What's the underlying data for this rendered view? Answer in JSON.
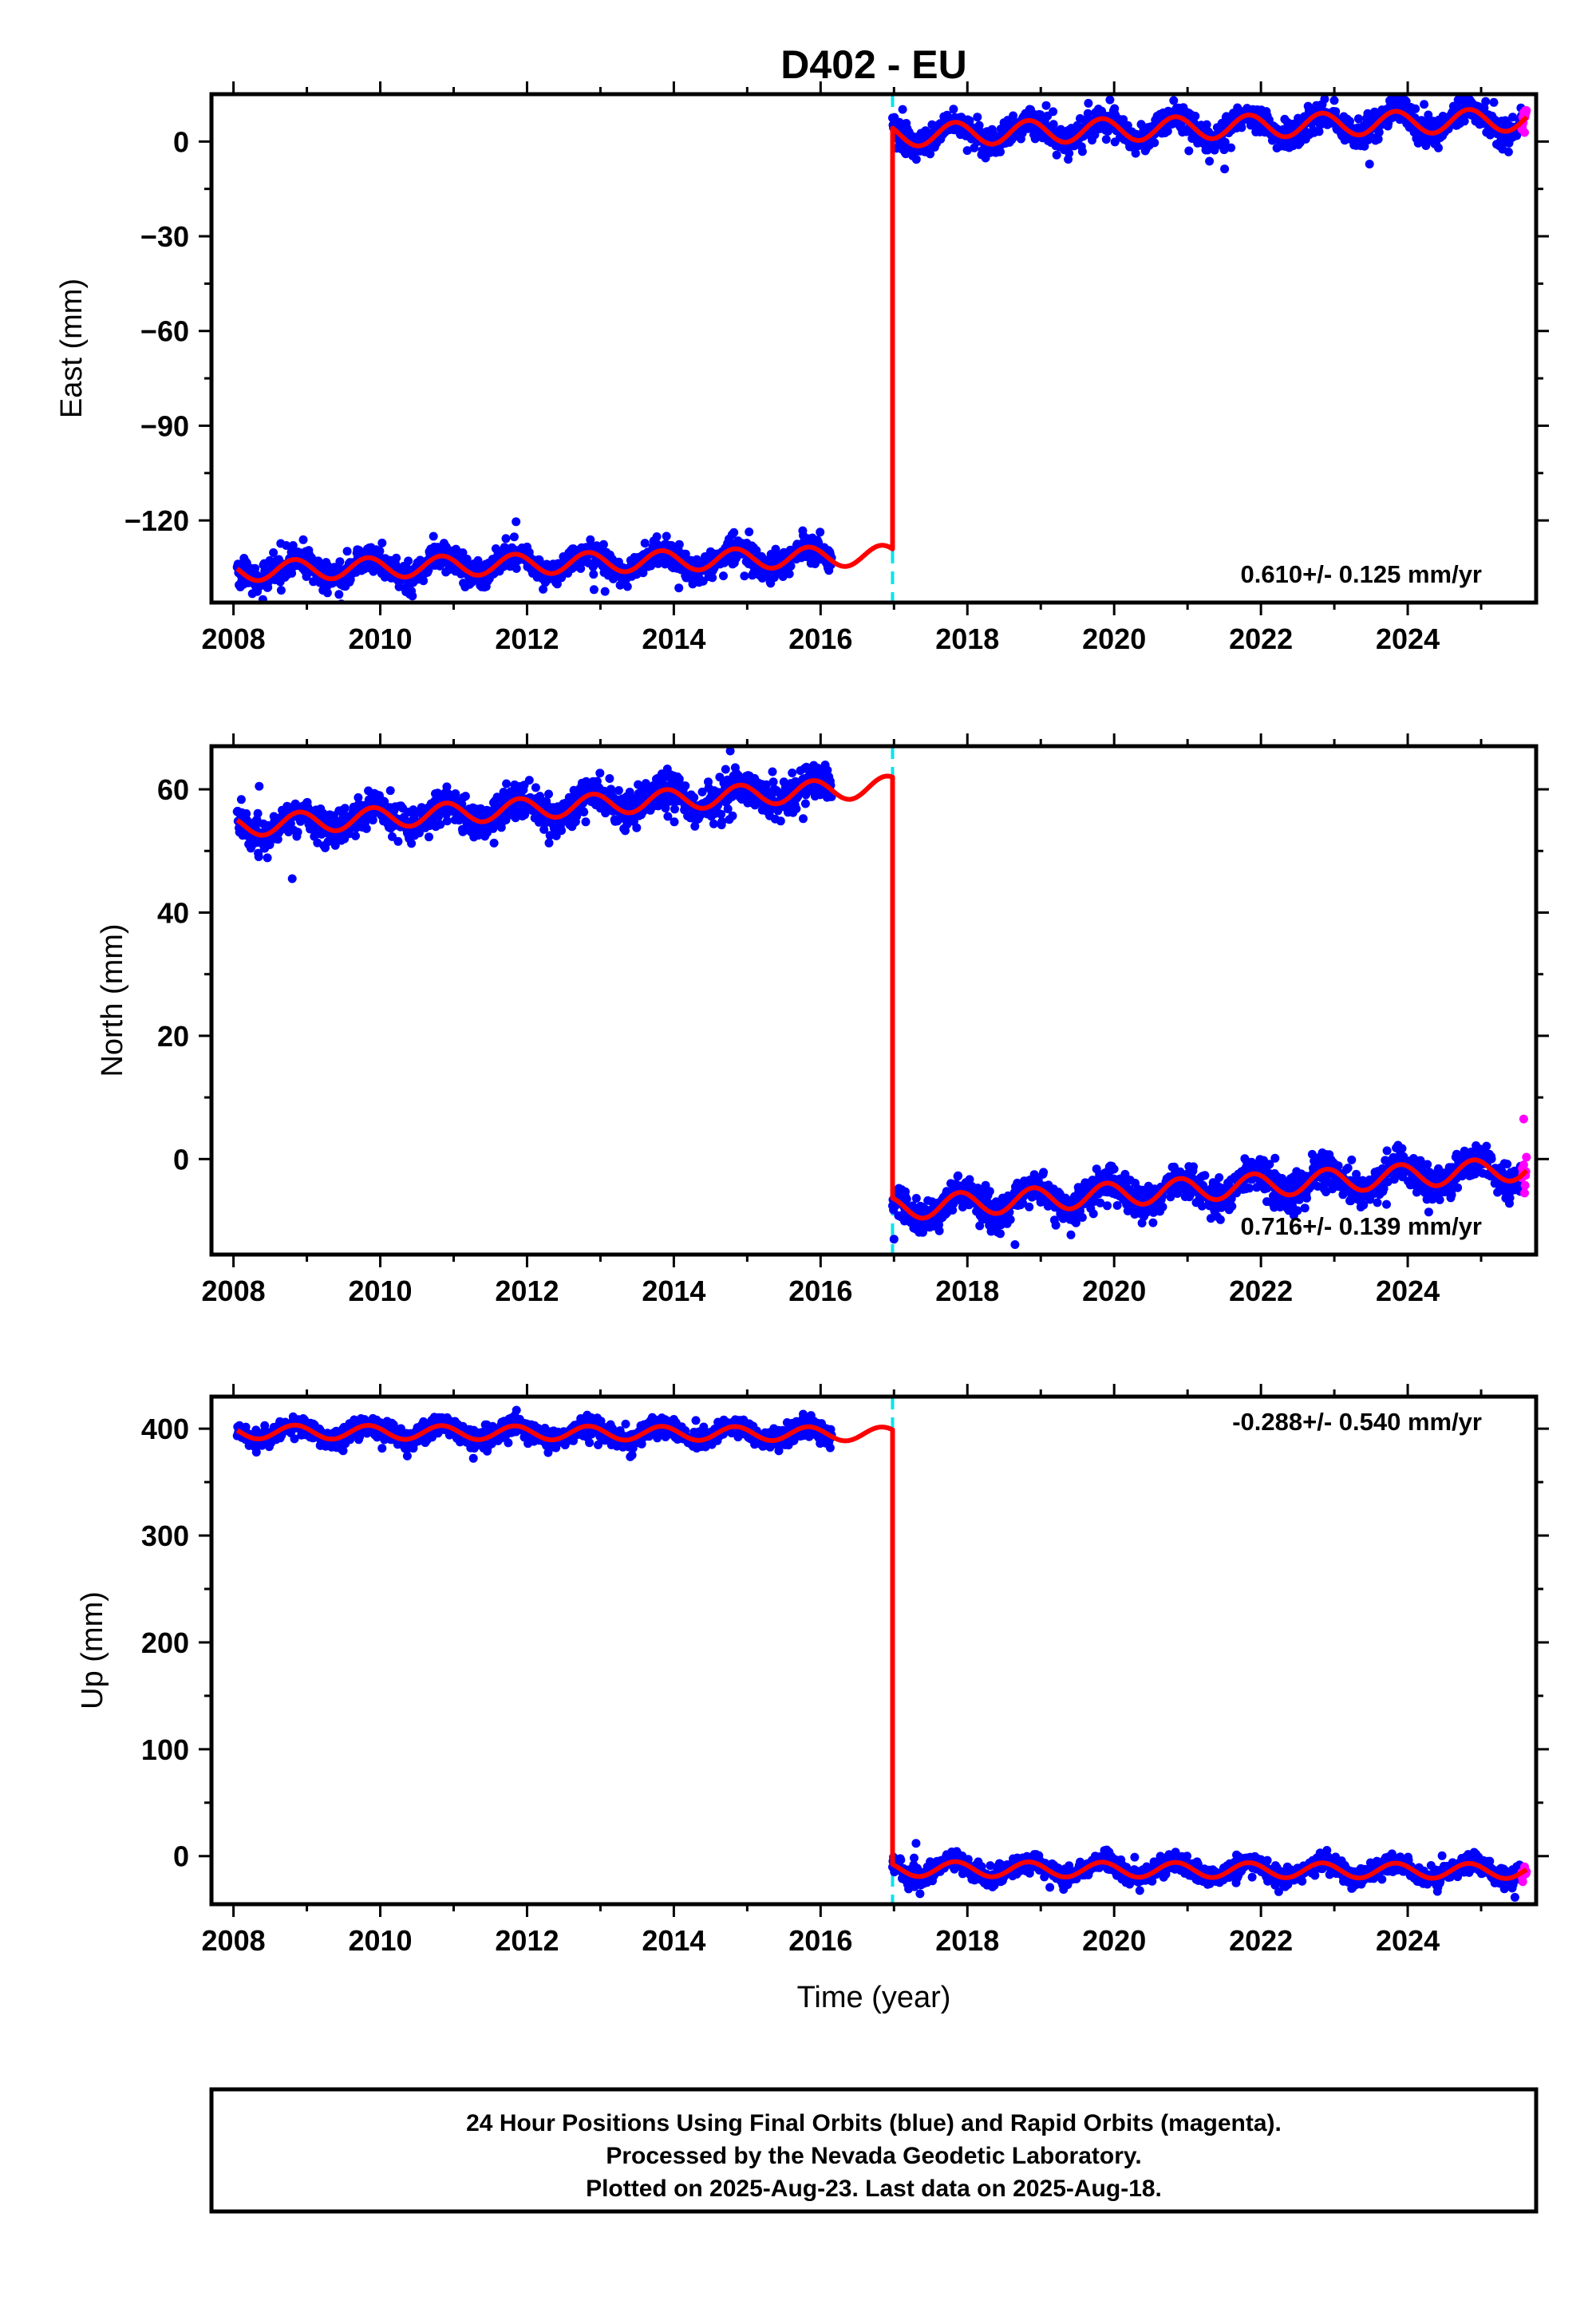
{
  "chart_data": [
    {
      "type": "scatter",
      "panel": "east",
      "title": "D402 - EU",
      "ylabel": "East (mm)",
      "xlabel": "",
      "xlim": [
        2007.7,
        2025.75
      ],
      "ylim": [
        -146,
        15
      ],
      "x_ticks": [
        2008,
        2010,
        2012,
        2014,
        2016,
        2018,
        2020,
        2022,
        2024
      ],
      "y_ticks": [
        0,
        -30,
        -60,
        -90,
        -120
      ],
      "rate_text": "0.610+/- 0.125 mm/yr",
      "rate_position": "bottom-right",
      "offset_epoch": 2016.98,
      "segments": [
        {
          "start": 2008.05,
          "end": 2016.15,
          "fit_end": 2016.98,
          "level_start": -136,
          "level_end": -131,
          "amplitude": 3.2,
          "phase": 2.6,
          "noise": 2.2
        },
        {
          "start": 2016.98,
          "end": 2025.62,
          "fit_end": 2025.62,
          "level_start": 2,
          "level_end": 7,
          "amplitude": 3.6,
          "phase": 2.6,
          "noise": 2.2
        }
      ],
      "outliers": [],
      "series": [
        {
          "name": "Final Orbits",
          "color": "#0000ff",
          "kind": "points",
          "x_range": [
            2008.05,
            2025.55
          ]
        },
        {
          "name": "Rapid Orbits",
          "color": "#ff00ff",
          "kind": "points",
          "x_range": [
            2025.55,
            2025.63
          ]
        },
        {
          "name": "Model",
          "color": "#ff0000",
          "kind": "line"
        }
      ],
      "grid": false
    },
    {
      "type": "scatter",
      "panel": "north",
      "title": "",
      "ylabel": "North (mm)",
      "xlabel": "",
      "xlim": [
        2007.7,
        2025.75
      ],
      "ylim": [
        -15.5,
        67
      ],
      "x_ticks": [
        2008,
        2010,
        2012,
        2014,
        2016,
        2018,
        2020,
        2022,
        2024
      ],
      "y_ticks": [
        60,
        40,
        20,
        0
      ],
      "rate_text": "0.716+/- 0.139 mm/yr",
      "rate_position": "bottom-right",
      "offset_epoch": 2016.98,
      "segments": [
        {
          "start": 2008.05,
          "end": 2016.15,
          "fit_end": 2016.98,
          "level_start": 54,
          "level_end": 60.5,
          "amplitude": 1.7,
          "phase": 2.2,
          "noise": 1.4
        },
        {
          "start": 2016.98,
          "end": 2025.62,
          "fit_end": 2025.62,
          "level_start": -8,
          "level_end": -1.5,
          "amplitude": 1.9,
          "phase": 2.2,
          "noise": 1.4
        }
      ],
      "outliers": [
        [
          2008.8,
          45.5
        ],
        [
          2009.25,
          50.5
        ],
        [
          2008.35,
          60.5
        ],
        [
          2017.0,
          -13
        ],
        [
          2025.58,
          6.5
        ]
      ],
      "series": [
        {
          "name": "Final Orbits",
          "color": "#0000ff",
          "kind": "points",
          "x_range": [
            2008.05,
            2025.55
          ]
        },
        {
          "name": "Rapid Orbits",
          "color": "#ff00ff",
          "kind": "points",
          "x_range": [
            2025.55,
            2025.63
          ]
        },
        {
          "name": "Model",
          "color": "#ff0000",
          "kind": "line"
        }
      ],
      "grid": false
    },
    {
      "type": "scatter",
      "panel": "up",
      "title": "",
      "ylabel": "Up (mm)",
      "xlabel": "Time (year)",
      "xlim": [
        2007.7,
        2025.75
      ],
      "ylim": [
        -45,
        430
      ],
      "x_ticks": [
        2008,
        2010,
        2012,
        2014,
        2016,
        2018,
        2020,
        2022,
        2024
      ],
      "y_ticks": [
        400,
        300,
        200,
        100,
        0
      ],
      "rate_text": "-0.288+/- 0.540 mm/yr",
      "rate_position": "top-right",
      "offset_epoch": 2016.98,
      "segments": [
        {
          "start": 2008.05,
          "end": 2016.15,
          "fit_end": 2016.98,
          "level_start": 397,
          "level_end": 395,
          "amplitude": 6.5,
          "phase": 2.6,
          "noise": 4.5
        },
        {
          "start": 2016.98,
          "end": 2025.62,
          "fit_end": 2025.62,
          "level_start": -12,
          "level_end": -14,
          "amplitude": 7,
          "phase": 2.6,
          "noise": 4.5
        }
      ],
      "outliers": [
        [
          2017.3,
          12
        ]
      ],
      "series": [
        {
          "name": "Final Orbits",
          "color": "#0000ff",
          "kind": "points",
          "x_range": [
            2008.05,
            2025.55
          ]
        },
        {
          "name": "Rapid Orbits",
          "color": "#ff00ff",
          "kind": "points",
          "x_range": [
            2025.55,
            2025.63
          ]
        },
        {
          "name": "Model",
          "color": "#ff0000",
          "kind": "line"
        }
      ],
      "grid": false
    }
  ],
  "footer": {
    "line1": "24 Hour Positions Using Final Orbits (blue) and Rapid Orbits (magenta).",
    "line2": "Processed by the Nevada Geodetic Laboratory.",
    "line3": "Plotted on 2025-Aug-23. Last data on 2025-Aug-18."
  },
  "colors": {
    "final_orbits": "#0000ff",
    "rapid_orbits": "#ff00ff",
    "model": "#ff0000",
    "offset_marker": "#00e5ee",
    "axes": "#000000"
  }
}
